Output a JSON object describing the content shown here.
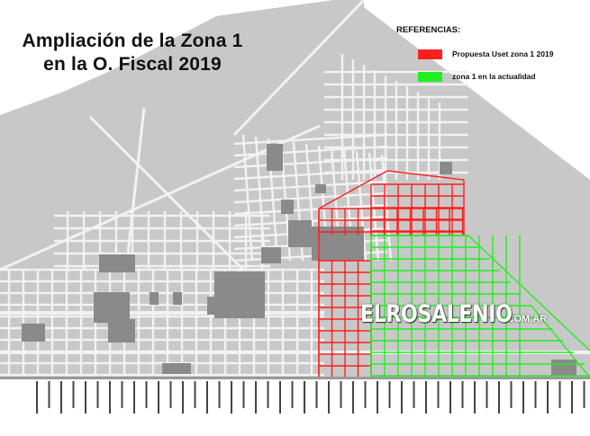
{
  "title": {
    "line1": "Ampliación de la Zona 1",
    "line2": "en la O. Fiscal 2019"
  },
  "legend": {
    "heading": "REFERENCIAS:",
    "items": [
      {
        "label": "Propuesta Uset zona 1  2019",
        "color": "#ff1f1f",
        "name": "legend-red"
      },
      {
        "label": "zona 1 en la actualidad",
        "color": "#22ee22",
        "name": "legend-green"
      }
    ]
  },
  "watermark": {
    "main": "ELROSALENIO",
    "tld": ".COM.AR"
  },
  "colors": {
    "background": "#ffffff",
    "land": "#c8c8c8",
    "street": "#f2f2f2",
    "blocks_dark": "#8a8a8a",
    "zone_red": "#ff1f1f",
    "zone_green": "#22ee22"
  }
}
